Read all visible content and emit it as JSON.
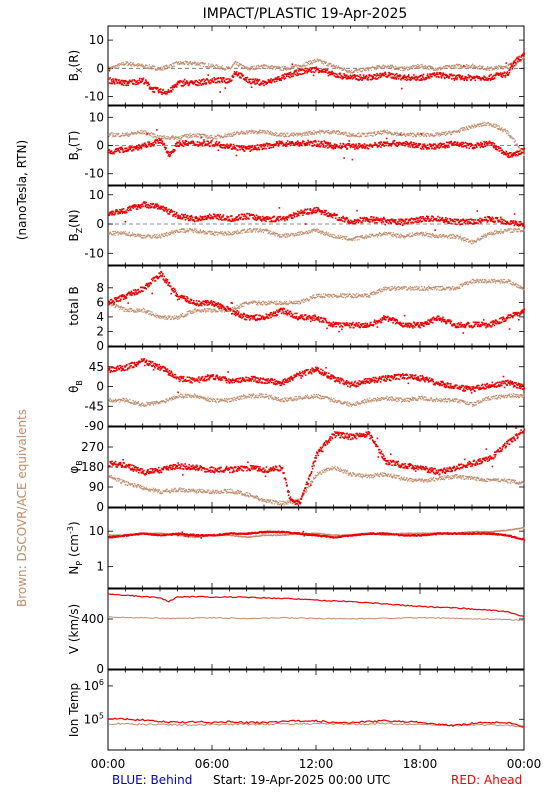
{
  "title": "IMPACT/PLASTIC   19-Apr-2025",
  "left_label_units": "(nanoTesla, RTN)",
  "left_label_brown": "Brown: DSCOVR/ACE equivalents",
  "footer": {
    "behind": "BLUE: Behind",
    "start": "Start: 19-Apr-2025 00:00 UTC",
    "ahead": "RED: Ahead"
  },
  "colors": {
    "ahead": "#ee0000",
    "brown": "#c08c6c",
    "behind": "#0000cc"
  },
  "x_ticks": [
    "00:00",
    "06:00",
    "12:00",
    "18:00",
    "00:00"
  ],
  "x_range_hours": [
    0,
    24
  ],
  "chart_data": [
    {
      "type": "scatter",
      "name": "bx",
      "ylabel": "B_X(R)",
      "ylim": [
        -13,
        15
      ],
      "ticks": [
        10,
        0,
        -10
      ],
      "zero_line": true,
      "series": [
        {
          "name": "Ahead",
          "color": "red",
          "x": [
            0,
            1,
            2,
            2.5,
            3,
            3.5,
            4,
            5,
            6,
            7,
            7.3,
            8,
            9,
            10,
            11,
            12,
            13,
            14,
            15,
            16,
            17,
            18,
            19,
            20,
            21,
            22,
            22.5,
            23,
            23.5,
            24
          ],
          "y": [
            -4,
            -5,
            -4,
            -7,
            -8,
            -8,
            -5,
            -5,
            -4,
            -4,
            -1,
            -4,
            -5,
            -3,
            -1,
            0,
            -2,
            -3,
            -3,
            -2,
            -3,
            -3,
            -2,
            -3,
            -3,
            -3,
            -2,
            -2,
            3,
            5
          ]
        },
        {
          "name": "DSCOVR/ACE",
          "color": "brown",
          "x": [
            0,
            1,
            2,
            3,
            4,
            5,
            6,
            7,
            7.3,
            8,
            9,
            10,
            11,
            12,
            13,
            14,
            15,
            16,
            17,
            18,
            19,
            20,
            21,
            22,
            23,
            23.5,
            24
          ],
          "y": [
            0,
            2,
            1,
            0,
            2,
            2,
            1,
            0,
            2,
            0,
            1,
            0,
            1,
            3,
            1,
            -1,
            0,
            1,
            0,
            1,
            0,
            1,
            1,
            0,
            1,
            2,
            4
          ]
        }
      ]
    },
    {
      "type": "scatter",
      "name": "by",
      "ylabel": "B_Y(T)",
      "ylim": [
        -14,
        14
      ],
      "ticks": [
        10,
        0,
        -10
      ],
      "zero_line": true,
      "series": [
        {
          "name": "Ahead",
          "color": "red",
          "x": [
            0,
            1,
            2,
            3,
            3.5,
            4,
            5,
            6,
            7,
            8,
            9,
            10,
            11,
            12,
            13,
            14,
            15,
            16,
            17,
            18,
            19,
            20,
            21,
            22,
            23,
            23.5,
            24
          ],
          "y": [
            -2,
            -1,
            0,
            2,
            -3,
            1,
            1,
            1,
            0,
            -1,
            0,
            1,
            1,
            1,
            0,
            0,
            0,
            1,
            1,
            0,
            0,
            1,
            0,
            1,
            -3,
            -3,
            -1
          ]
        },
        {
          "name": "DSCOVR/ACE",
          "color": "brown",
          "x": [
            0,
            1,
            2,
            3,
            4,
            5,
            6,
            7,
            8,
            9,
            10,
            11,
            12,
            13,
            14,
            15,
            16,
            17,
            18,
            19,
            20,
            21,
            22,
            23,
            24
          ],
          "y": [
            4,
            4,
            5,
            3,
            3,
            4,
            3,
            4,
            5,
            5,
            4,
            4,
            5,
            5,
            4,
            4,
            5,
            4,
            4,
            4,
            5,
            7,
            8,
            5,
            -3
          ]
        }
      ]
    },
    {
      "type": "scatter",
      "name": "bz",
      "ylabel": "B_Z(N)",
      "ylim": [
        -14,
        13
      ],
      "ticks": [
        10,
        0,
        -10
      ],
      "zero_line": true,
      "series": [
        {
          "name": "Ahead",
          "color": "red",
          "x": [
            0,
            1,
            2,
            3,
            4,
            5,
            6,
            7,
            8,
            9,
            10,
            11,
            12,
            13,
            14,
            15,
            16,
            17,
            18,
            19,
            20,
            21,
            22,
            23,
            24
          ],
          "y": [
            4,
            5,
            7,
            6,
            3,
            2,
            3,
            2,
            3,
            2,
            2,
            4,
            5,
            3,
            1,
            2,
            1,
            1,
            2,
            2,
            1,
            1,
            2,
            1,
            0
          ]
        },
        {
          "name": "DSCOVR/ACE",
          "color": "brown",
          "x": [
            0,
            1,
            2,
            3,
            4,
            5,
            6,
            7,
            8,
            9,
            10,
            11,
            12,
            13,
            14,
            15,
            16,
            17,
            18,
            19,
            20,
            21,
            22,
            23,
            24
          ],
          "y": [
            -3,
            -3,
            -4,
            -4,
            -2,
            -2,
            -3,
            -3,
            -2,
            -2,
            -4,
            -3,
            -2,
            -4,
            -5,
            -4,
            -3,
            -4,
            -3,
            -4,
            -4,
            -6,
            -3,
            -2,
            -2
          ]
        }
      ]
    },
    {
      "type": "scatter",
      "name": "btotal",
      "ylabel": "total B",
      "ylim": [
        0,
        11
      ],
      "ticks": [
        8,
        6,
        4,
        2,
        0
      ],
      "series": [
        {
          "name": "Ahead",
          "color": "red",
          "x": [
            0,
            1,
            2,
            2.5,
            3,
            4,
            5,
            6,
            7,
            8,
            9,
            10,
            11,
            12,
            13,
            14,
            15,
            16,
            17,
            18,
            19,
            20,
            21,
            22,
            23,
            24
          ],
          "y": [
            6,
            7,
            8,
            9,
            10,
            7,
            6,
            6,
            5,
            4,
            4,
            5,
            4,
            4,
            3,
            3,
            3,
            4,
            3,
            3,
            4,
            3,
            3,
            3,
            4,
            5
          ]
        },
        {
          "name": "DSCOVR/ACE",
          "color": "brown",
          "x": [
            0,
            1,
            2,
            3,
            4,
            5,
            6,
            7,
            8,
            9,
            10,
            11,
            12,
            13,
            14,
            15,
            16,
            17,
            18,
            19,
            20,
            21,
            22,
            23,
            24
          ],
          "y": [
            6,
            5,
            5,
            4,
            4,
            5,
            5,
            5,
            6,
            6,
            6,
            6,
            7,
            7,
            7,
            7,
            8,
            8,
            8,
            8,
            8,
            9,
            9,
            9,
            8
          ]
        }
      ]
    },
    {
      "type": "scatter",
      "name": "theta",
      "ylabel": "θ_B",
      "ylim": [
        -90,
        90
      ],
      "ticks": [
        45,
        0,
        -45,
        -90
      ],
      "series": [
        {
          "name": "Ahead",
          "color": "red",
          "x": [
            0,
            1,
            2,
            3,
            4,
            5,
            6,
            7,
            8,
            9,
            10,
            11,
            12,
            13,
            14,
            15,
            16,
            17,
            18,
            19,
            20,
            21,
            22,
            23,
            24
          ],
          "y": [
            40,
            45,
            60,
            45,
            20,
            15,
            25,
            15,
            20,
            15,
            10,
            30,
            40,
            20,
            5,
            15,
            20,
            25,
            20,
            10,
            0,
            -5,
            5,
            10,
            0
          ]
        },
        {
          "name": "DSCOVR/ACE",
          "color": "brown",
          "x": [
            0,
            1,
            2,
            3,
            4,
            5,
            6,
            7,
            8,
            9,
            10,
            11,
            12,
            13,
            14,
            15,
            16,
            17,
            18,
            19,
            20,
            21,
            22,
            23,
            24
          ],
          "y": [
            -30,
            -30,
            -40,
            -35,
            -20,
            -20,
            -30,
            -30,
            -20,
            -20,
            -30,
            -25,
            -20,
            -30,
            -40,
            -30,
            -25,
            -30,
            -25,
            -30,
            -30,
            -40,
            -25,
            -20,
            -20
          ]
        }
      ]
    },
    {
      "type": "scatter",
      "name": "phi",
      "ylabel": "φ_B",
      "ylim": [
        0,
        360
      ],
      "ticks": [
        270,
        180,
        90,
        0
      ],
      "series": [
        {
          "name": "Ahead",
          "color": "red",
          "x": [
            0,
            1,
            2,
            3,
            4,
            5,
            6,
            7,
            8,
            9,
            10,
            10.5,
            11,
            11.5,
            12,
            13,
            14,
            15,
            16,
            17,
            18,
            19,
            20,
            21,
            22,
            23,
            24
          ],
          "y": [
            200,
            190,
            160,
            170,
            190,
            180,
            170,
            170,
            180,
            170,
            180,
            30,
            20,
            120,
            240,
            330,
            320,
            330,
            210,
            190,
            180,
            160,
            180,
            200,
            220,
            290,
            350
          ]
        },
        {
          "name": "DSCOVR/ACE",
          "color": "brown",
          "x": [
            0,
            1,
            2,
            3,
            4,
            5,
            6,
            7,
            8,
            9,
            10,
            11,
            12,
            13,
            14,
            15,
            16,
            17,
            18,
            19,
            20,
            21,
            22,
            23,
            24
          ],
          "y": [
            140,
            110,
            90,
            70,
            80,
            75,
            70,
            75,
            60,
            30,
            20,
            30,
            150,
            180,
            150,
            140,
            150,
            130,
            120,
            130,
            140,
            130,
            125,
            120,
            110
          ]
        }
      ]
    },
    {
      "type": "scatter",
      "name": "np",
      "ylabel": "N_P (cm^-3)",
      "log": true,
      "ylim": [
        0.25,
        45
      ],
      "ticks": [
        10,
        1
      ],
      "series": [
        {
          "name": "Ahead",
          "color": "red",
          "x": [
            0,
            1,
            2,
            3,
            4,
            5,
            6,
            7,
            8,
            9,
            10,
            11,
            12,
            13,
            14,
            15,
            16,
            17,
            18,
            19,
            20,
            21,
            22,
            23,
            24
          ],
          "y": [
            7,
            8,
            9,
            8,
            9,
            8,
            8,
            9,
            9,
            10,
            10,
            9,
            8,
            7,
            8,
            9,
            9,
            8,
            8,
            9,
            9,
            9,
            9,
            8,
            6
          ]
        },
        {
          "name": "DSCOVR/ACE",
          "color": "brown",
          "x": [
            0,
            1,
            2,
            3,
            4,
            5,
            6,
            7,
            8,
            9,
            10,
            11,
            12,
            13,
            14,
            15,
            16,
            17,
            18,
            19,
            20,
            21,
            22,
            23,
            24
          ],
          "y": [
            8,
            8,
            9,
            9,
            8,
            7,
            8,
            8,
            7,
            8,
            8,
            9,
            9,
            8,
            8,
            9,
            8,
            9,
            9,
            9,
            9,
            10,
            10,
            11,
            13
          ]
        }
      ]
    },
    {
      "type": "line",
      "name": "v",
      "ylabel": "V (km/s)",
      "ylim": [
        0,
        640
      ],
      "ticks": [
        400,
        0
      ],
      "series": [
        {
          "name": "Ahead",
          "color": "red",
          "x": [
            0,
            1,
            2,
            3,
            3.5,
            4,
            5,
            6,
            7,
            8,
            9,
            10,
            11,
            12,
            13,
            14,
            15,
            16,
            17,
            18,
            19,
            20,
            21,
            22,
            23,
            24
          ],
          "y": [
            600,
            590,
            580,
            570,
            540,
            575,
            580,
            575,
            575,
            575,
            570,
            565,
            560,
            550,
            545,
            540,
            530,
            520,
            510,
            500,
            495,
            490,
            480,
            470,
            460,
            420
          ]
        },
        {
          "name": "DSCOVR/ACE",
          "color": "brown",
          "x": [
            0,
            2,
            4,
            6,
            8,
            10,
            12,
            14,
            16,
            18,
            20,
            22,
            24
          ],
          "y": [
            415,
            410,
            405,
            410,
            405,
            410,
            405,
            400,
            405,
            410,
            405,
            400,
            390
          ]
        }
      ]
    },
    {
      "type": "line",
      "name": "temp",
      "ylabel": "Ion Temp",
      "log": true,
      "ylim": [
        12000,
        3000000
      ],
      "ticks": [
        1000000,
        100000
      ],
      "series": [
        {
          "name": "Ahead",
          "color": "red",
          "x": [
            0,
            1,
            2,
            3,
            4,
            5,
            6,
            7,
            8,
            9,
            10,
            11,
            12,
            13,
            14,
            15,
            16,
            17,
            18,
            19,
            20,
            21,
            22,
            23,
            24
          ],
          "y": [
            110000,
            100000,
            95000,
            85000,
            80000,
            85000,
            80000,
            85000,
            80000,
            80000,
            85000,
            90000,
            90000,
            80000,
            80000,
            85000,
            90000,
            85000,
            80000,
            70000,
            65000,
            75000,
            80000,
            80000,
            60000
          ]
        },
        {
          "name": "DSCOVR/ACE",
          "color": "brown",
          "x": [
            0,
            2,
            4,
            6,
            8,
            10,
            12,
            14,
            16,
            18,
            20,
            22,
            24
          ],
          "y": [
            75000,
            70000,
            68000,
            70000,
            70000,
            72000,
            75000,
            70000,
            75000,
            70000,
            65000,
            70000,
            60000
          ]
        }
      ]
    }
  ]
}
